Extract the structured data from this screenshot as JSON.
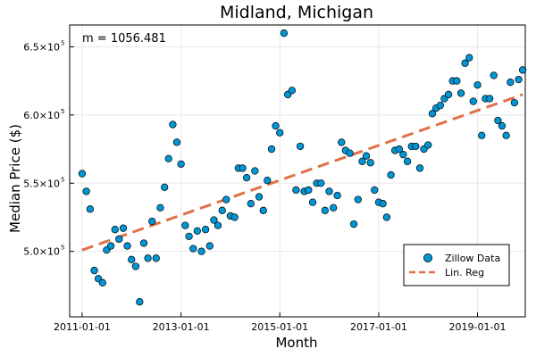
{
  "chart_data": {
    "type": "scatter",
    "title": "Midland, Michigan",
    "xlabel": "Month",
    "ylabel": "Median Price ($)",
    "annotation": "m = 1056.481",
    "x_ticks": [
      "2011-01-01",
      "2013-01-01",
      "2015-01-01",
      "2017-01-01",
      "2019-01-01"
    ],
    "y_ticks": [
      {
        "value": 500000,
        "mantissa": "5.0×10",
        "exp": "5"
      },
      {
        "value": 550000,
        "mantissa": "5.5×10",
        "exp": "5"
      },
      {
        "value": 600000,
        "mantissa": "6.0×10",
        "exp": "5"
      },
      {
        "value": 650000,
        "mantissa": "6.5×10",
        "exp": "5"
      }
    ],
    "xlim": [
      "2010-10-01",
      "2019-12-20"
    ],
    "ylim": [
      452000,
      666000
    ],
    "grid": true,
    "legend_position": "bottom-right",
    "colors": {
      "points": "#0096d6",
      "line": "#e26f46"
    },
    "series": [
      {
        "name": "Zillow Data",
        "kind": "scatter",
        "points": [
          [
            "2011-01-01",
            557000
          ],
          [
            "2011-02-01",
            544000
          ],
          [
            "2011-03-01",
            531000
          ],
          [
            "2011-04-01",
            486000
          ],
          [
            "2011-05-01",
            480000
          ],
          [
            "2011-06-01",
            477000
          ],
          [
            "2011-07-01",
            501000
          ],
          [
            "2011-08-01",
            504000
          ],
          [
            "2011-09-01",
            516000
          ],
          [
            "2011-10-01",
            509000
          ],
          [
            "2011-11-01",
            517000
          ],
          [
            "2011-12-01",
            504000
          ],
          [
            "2012-01-01",
            494000
          ],
          [
            "2012-02-01",
            489000
          ],
          [
            "2012-03-01",
            463000
          ],
          [
            "2012-04-01",
            506000
          ],
          [
            "2012-05-01",
            495000
          ],
          [
            "2012-06-01",
            522000
          ],
          [
            "2012-07-01",
            495000
          ],
          [
            "2012-08-01",
            532000
          ],
          [
            "2012-09-01",
            547000
          ],
          [
            "2012-10-01",
            568000
          ],
          [
            "2012-11-01",
            593000
          ],
          [
            "2012-12-01",
            580000
          ],
          [
            "2013-01-01",
            564000
          ],
          [
            "2013-02-01",
            519000
          ],
          [
            "2013-03-01",
            511000
          ],
          [
            "2013-04-01",
            502000
          ],
          [
            "2013-05-01",
            515000
          ],
          [
            "2013-06-01",
            500000
          ],
          [
            "2013-07-01",
            516000
          ],
          [
            "2013-08-01",
            504000
          ],
          [
            "2013-09-01",
            523000
          ],
          [
            "2013-10-01",
            519000
          ],
          [
            "2013-11-01",
            530000
          ],
          [
            "2013-12-01",
            538000
          ],
          [
            "2014-01-01",
            526000
          ],
          [
            "2014-02-01",
            525000
          ],
          [
            "2014-03-01",
            561000
          ],
          [
            "2014-04-01",
            561000
          ],
          [
            "2014-05-01",
            554000
          ],
          [
            "2014-06-01",
            535000
          ],
          [
            "2014-07-01",
            559000
          ],
          [
            "2014-08-01",
            540000
          ],
          [
            "2014-09-01",
            530000
          ],
          [
            "2014-10-01",
            552000
          ],
          [
            "2014-11-01",
            575000
          ],
          [
            "2014-12-01",
            592000
          ],
          [
            "2015-01-01",
            587000
          ],
          [
            "2015-02-01",
            660000
          ],
          [
            "2015-03-01",
            615000
          ],
          [
            "2015-04-01",
            618000
          ],
          [
            "2015-05-01",
            545000
          ],
          [
            "2015-06-01",
            577000
          ],
          [
            "2015-07-01",
            544000
          ],
          [
            "2015-08-01",
            545000
          ],
          [
            "2015-09-01",
            536000
          ],
          [
            "2015-10-01",
            550000
          ],
          [
            "2015-11-01",
            550000
          ],
          [
            "2015-12-01",
            530000
          ],
          [
            "2016-01-01",
            544000
          ],
          [
            "2016-02-01",
            532000
          ],
          [
            "2016-03-01",
            541000
          ],
          [
            "2016-04-01",
            580000
          ],
          [
            "2016-05-01",
            574000
          ],
          [
            "2016-06-01",
            572000
          ],
          [
            "2016-07-01",
            520000
          ],
          [
            "2016-08-01",
            538000
          ],
          [
            "2016-09-01",
            566000
          ],
          [
            "2016-10-01",
            570000
          ],
          [
            "2016-11-01",
            565000
          ],
          [
            "2016-12-01",
            545000
          ],
          [
            "2017-01-01",
            536000
          ],
          [
            "2017-02-01",
            535000
          ],
          [
            "2017-03-01",
            525000
          ],
          [
            "2017-04-01",
            556000
          ],
          [
            "2017-05-01",
            574000
          ],
          [
            "2017-06-01",
            575000
          ],
          [
            "2017-07-01",
            571000
          ],
          [
            "2017-08-01",
            566000
          ],
          [
            "2017-09-01",
            577000
          ],
          [
            "2017-10-01",
            577000
          ],
          [
            "2017-11-01",
            561000
          ],
          [
            "2017-12-01",
            575000
          ],
          [
            "2018-01-01",
            578000
          ],
          [
            "2018-02-01",
            601000
          ],
          [
            "2018-03-01",
            605000
          ],
          [
            "2018-04-01",
            607000
          ],
          [
            "2018-05-01",
            612000
          ],
          [
            "2018-06-01",
            615000
          ],
          [
            "2018-07-01",
            625000
          ],
          [
            "2018-08-01",
            625000
          ],
          [
            "2018-09-01",
            616000
          ],
          [
            "2018-10-01",
            638000
          ],
          [
            "2018-11-01",
            642000
          ],
          [
            "2018-12-01",
            610000
          ],
          [
            "2019-01-01",
            622000
          ],
          [
            "2019-02-01",
            585000
          ],
          [
            "2019-03-01",
            612000
          ],
          [
            "2019-04-01",
            612000
          ],
          [
            "2019-05-01",
            629000
          ],
          [
            "2019-06-01",
            596000
          ],
          [
            "2019-07-01",
            592000
          ],
          [
            "2019-08-01",
            585000
          ],
          [
            "2019-09-01",
            624000
          ],
          [
            "2019-10-01",
            609000
          ],
          [
            "2019-11-01",
            626000
          ],
          [
            "2019-12-01",
            633000
          ]
        ]
      },
      {
        "name": "Lin. Reg",
        "kind": "line",
        "dash": "dashed",
        "points": [
          [
            "2011-01-01",
            501000
          ],
          [
            "2019-12-01",
            615000
          ]
        ]
      }
    ]
  }
}
